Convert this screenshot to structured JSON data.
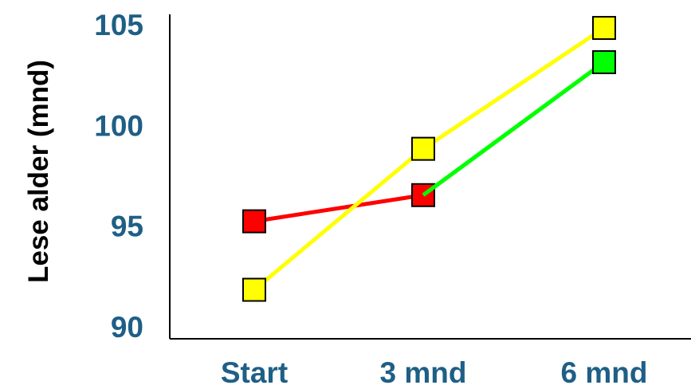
{
  "chart_data": {
    "type": "line",
    "title": "",
    "xlabel": "",
    "ylabel": "Lese alder (mnd)",
    "categories": [
      "Start",
      "3 mnd",
      "6 mnd"
    ],
    "ylim": [
      90,
      105
    ],
    "yticks": [
      90,
      95,
      100,
      105
    ],
    "grid": false,
    "legend": "none",
    "series": [
      {
        "color": "#ff0000",
        "marker_color": "#ff0000",
        "points": [
          {
            "x": "Start",
            "y": 95.2
          },
          {
            "x": "3 mnd",
            "y": 96.5
          }
        ]
      },
      {
        "color": "#00ff00",
        "marker_color": "#00ff00",
        "points": [
          {
            "x": "3 mnd",
            "y": 96.5
          },
          {
            "x": "6 mnd",
            "y": 103.1
          }
        ]
      },
      {
        "color": "#ffff00",
        "marker_color": "#ffff00",
        "points": [
          {
            "x": "Start",
            "y": 91.8
          },
          {
            "x": "3 mnd",
            "y": 98.8
          },
          {
            "x": "6 mnd",
            "y": 104.8
          }
        ]
      }
    ],
    "markers": [
      {
        "x": "Start",
        "y": 95.2,
        "color": "#ff0000",
        "z": 1
      },
      {
        "x": "Start",
        "y": 91.8,
        "color": "#ffff00",
        "z": 1
      },
      {
        "x": "3 mnd",
        "y": 98.8,
        "color": "#ffff00",
        "z": 1
      },
      {
        "x": "3 mnd",
        "y": 96.5,
        "color": "#ff0000",
        "z": 0
      },
      {
        "x": "6 mnd",
        "y": 103.1,
        "color": "#00ff00",
        "z": 1
      },
      {
        "x": "6 mnd",
        "y": 104.8,
        "color": "#ffff00",
        "z": 1
      }
    ],
    "colors": {
      "text": "#1f5f86",
      "axis": "#000000",
      "marker_border": "#000000"
    }
  }
}
